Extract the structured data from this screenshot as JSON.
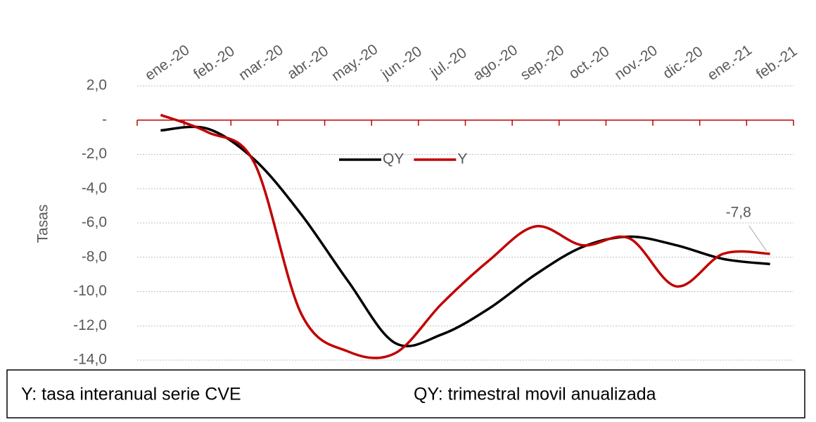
{
  "chart_data": {
    "type": "line",
    "y_label": "Tasas",
    "categories": [
      "ene.-20",
      "feb.-20",
      "mar.-20",
      "abr.-20",
      "may.-20",
      "jun.-20",
      "jul.-20",
      "ago.-20",
      "sep.-20",
      "oct.-20",
      "nov.-20",
      "dic.-20",
      "ene.-21",
      "feb.-21"
    ],
    "series": [
      {
        "name": "QY",
        "color": "#000000",
        "values": [
          -0.6,
          -0.5,
          -2.3,
          -5.5,
          -9.4,
          -13.0,
          -12.5,
          -11.0,
          -9.0,
          -7.4,
          -6.8,
          -7.3,
          -8.1,
          -8.4
        ]
      },
      {
        "name": "Y",
        "color": "#c00000",
        "values": [
          0.3,
          -0.7,
          -2.5,
          -11.3,
          -13.5,
          -13.6,
          -10.7,
          -8.2,
          -6.2,
          -7.3,
          -6.9,
          -9.7,
          -7.8,
          -7.8
        ],
        "value_labels": [
          null,
          null,
          null,
          null,
          null,
          null,
          null,
          null,
          null,
          null,
          null,
          null,
          null,
          "-7,8"
        ]
      }
    ],
    "ylim": [
      -14,
      2
    ],
    "yticks": [
      {
        "value": -14,
        "label": "-14,0"
      },
      {
        "value": -12,
        "label": "-12,0"
      },
      {
        "value": -10,
        "label": "-10,0"
      },
      {
        "value": -8,
        "label": "-8,0"
      },
      {
        "value": -6,
        "label": "-6,0"
      },
      {
        "value": -4,
        "label": "-4,0"
      },
      {
        "value": -2,
        "label": "-2,0"
      },
      {
        "value": 0,
        "label": "-"
      },
      {
        "value": 2,
        "label": "2,0"
      }
    ],
    "grid": true,
    "legend": "center",
    "notes": [
      "Y: tasa interanual serie CVE",
      "QY: trimestral movil anualizada"
    ]
  }
}
